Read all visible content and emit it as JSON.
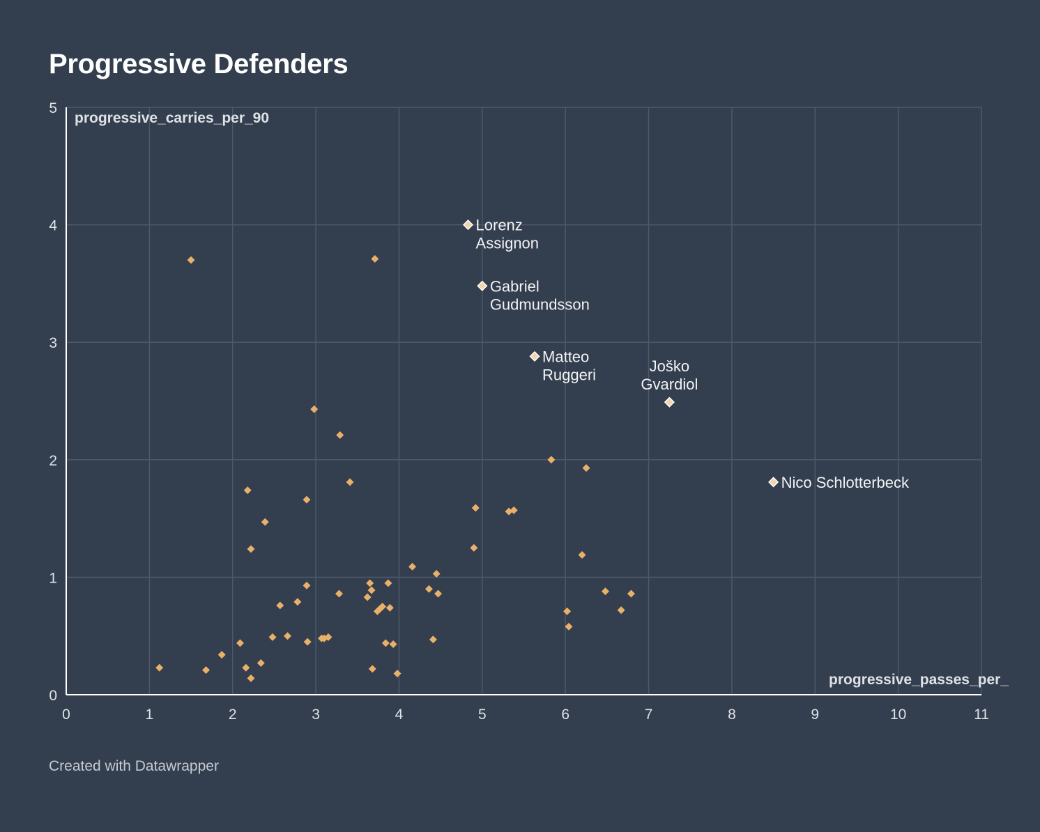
{
  "chart_data": {
    "type": "scatter",
    "title": "Progressive Defenders",
    "xlabel": "progressive_passes_per_",
    "ylabel": "progressive_carries_per_90",
    "xlim": [
      0,
      11
    ],
    "ylim": [
      0,
      5
    ],
    "xticks": [
      "0",
      "1",
      "2",
      "3",
      "4",
      "5",
      "6",
      "7",
      "8",
      "9",
      "10",
      "11"
    ],
    "yticks": [
      "0",
      "1",
      "2",
      "3",
      "4",
      "5"
    ],
    "grid": true,
    "colors": {
      "background": "#333e4e",
      "point": "#e9b06a",
      "highlight": "#f1d4ad",
      "highlight_stroke": "#ffffff",
      "grid": "#4d5868",
      "axis": "#ffffff"
    },
    "points": [
      {
        "x": 1.12,
        "y": 0.23
      },
      {
        "x": 1.68,
        "y": 0.21
      },
      {
        "x": 1.87,
        "y": 0.34
      },
      {
        "x": 2.09,
        "y": 0.44
      },
      {
        "x": 2.16,
        "y": 0.23
      },
      {
        "x": 2.22,
        "y": 0.14
      },
      {
        "x": 2.34,
        "y": 0.27
      },
      {
        "x": 2.48,
        "y": 0.49
      },
      {
        "x": 2.57,
        "y": 0.76
      },
      {
        "x": 2.66,
        "y": 0.5
      },
      {
        "x": 2.78,
        "y": 0.79
      },
      {
        "x": 2.9,
        "y": 0.45
      },
      {
        "x": 2.89,
        "y": 0.93
      },
      {
        "x": 3.07,
        "y": 0.48
      },
      {
        "x": 3.1,
        "y": 0.48
      },
      {
        "x": 3.15,
        "y": 0.49
      },
      {
        "x": 3.28,
        "y": 0.86
      },
      {
        "x": 3.62,
        "y": 0.83
      },
      {
        "x": 3.65,
        "y": 0.95
      },
      {
        "x": 3.67,
        "y": 0.89
      },
      {
        "x": 3.68,
        "y": 0.22
      },
      {
        "x": 3.74,
        "y": 0.71
      },
      {
        "x": 3.77,
        "y": 0.73
      },
      {
        "x": 3.8,
        "y": 0.75
      },
      {
        "x": 3.84,
        "y": 0.44
      },
      {
        "x": 3.87,
        "y": 0.95
      },
      {
        "x": 3.89,
        "y": 0.74
      },
      {
        "x": 3.93,
        "y": 0.43
      },
      {
        "x": 3.98,
        "y": 0.18
      },
      {
        "x": 4.16,
        "y": 1.09
      },
      {
        "x": 4.36,
        "y": 0.9
      },
      {
        "x": 4.41,
        "y": 0.47
      },
      {
        "x": 4.45,
        "y": 1.03
      },
      {
        "x": 4.47,
        "y": 0.86
      },
      {
        "x": 2.22,
        "y": 1.24
      },
      {
        "x": 2.39,
        "y": 1.47
      },
      {
        "x": 2.18,
        "y": 1.74
      },
      {
        "x": 2.89,
        "y": 1.66
      },
      {
        "x": 2.98,
        "y": 2.43
      },
      {
        "x": 3.29,
        "y": 2.21
      },
      {
        "x": 3.41,
        "y": 1.81
      },
      {
        "x": 1.5,
        "y": 3.7
      },
      {
        "x": 3.71,
        "y": 3.71
      },
      {
        "x": 4.9,
        "y": 1.25
      },
      {
        "x": 4.92,
        "y": 1.59
      },
      {
        "x": 5.32,
        "y": 1.56
      },
      {
        "x": 5.38,
        "y": 1.57
      },
      {
        "x": 5.83,
        "y": 2.0
      },
      {
        "x": 6.02,
        "y": 0.71
      },
      {
        "x": 6.04,
        "y": 0.58
      },
      {
        "x": 6.2,
        "y": 1.19
      },
      {
        "x": 6.25,
        "y": 1.93
      },
      {
        "x": 6.48,
        "y": 0.88
      },
      {
        "x": 6.67,
        "y": 0.72
      },
      {
        "x": 6.79,
        "y": 0.86
      }
    ],
    "highlights": [
      {
        "name": "Lorenz Assignon",
        "lines": [
          "Lorenz",
          "Assignon"
        ],
        "x": 4.83,
        "y": 4.0,
        "anchor": "right"
      },
      {
        "name": "Gabriel Gudmundsson",
        "lines": [
          "Gabriel",
          "Gudmundsson"
        ],
        "x": 5.0,
        "y": 3.48,
        "anchor": "right"
      },
      {
        "name": "Matteo Ruggeri",
        "lines": [
          "Matteo",
          "Ruggeri"
        ],
        "x": 5.63,
        "y": 2.88,
        "anchor": "right"
      },
      {
        "name": "Joško Gvardiol",
        "lines": [
          "Joško",
          "Gvardiol"
        ],
        "x": 7.25,
        "y": 2.49,
        "anchor": "above"
      },
      {
        "name": "Nico Schlotterbeck",
        "lines": [
          "Nico Schlotterbeck"
        ],
        "x": 8.5,
        "y": 1.81,
        "anchor": "right"
      }
    ]
  },
  "footer": {
    "credit": "Created with Datawrapper"
  }
}
